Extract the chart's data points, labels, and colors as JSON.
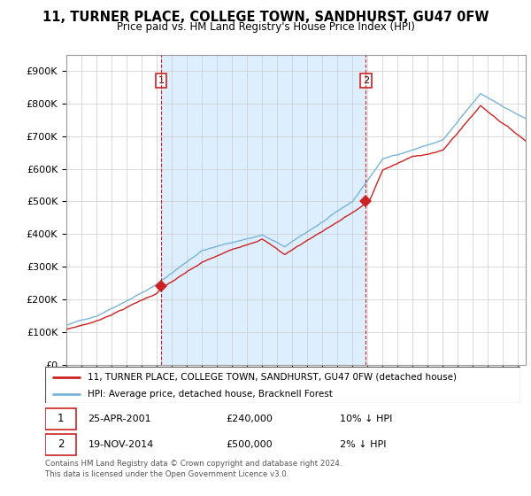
{
  "title": "11, TURNER PLACE, COLLEGE TOWN, SANDHURST, GU47 0FW",
  "subtitle": "Price paid vs. HM Land Registry's House Price Index (HPI)",
  "hpi_label": "HPI: Average price, detached house, Bracknell Forest",
  "property_label": "11, TURNER PLACE, COLLEGE TOWN, SANDHURST, GU47 0FW (detached house)",
  "footnote": "Contains HM Land Registry data © Crown copyright and database right 2024.\nThis data is licensed under the Open Government Licence v3.0.",
  "sale1": {
    "date": "25-APR-2001",
    "price": 240000,
    "vs_hpi": "10% ↓ HPI",
    "year": 2001.3
  },
  "sale2": {
    "date": "19-NOV-2014",
    "price": 500000,
    "vs_hpi": "2% ↓ HPI",
    "year": 2014.88
  },
  "hpi_color": "#7ab3d8",
  "property_color": "#cc2222",
  "vline_color": "#cc2222",
  "shade_color": "#ddeeff",
  "ylim": [
    0,
    950000
  ],
  "yticks": [
    0,
    100000,
    200000,
    300000,
    400000,
    500000,
    600000,
    700000,
    800000,
    900000
  ],
  "xlim_start": 1995.0,
  "xlim_end": 2025.5
}
